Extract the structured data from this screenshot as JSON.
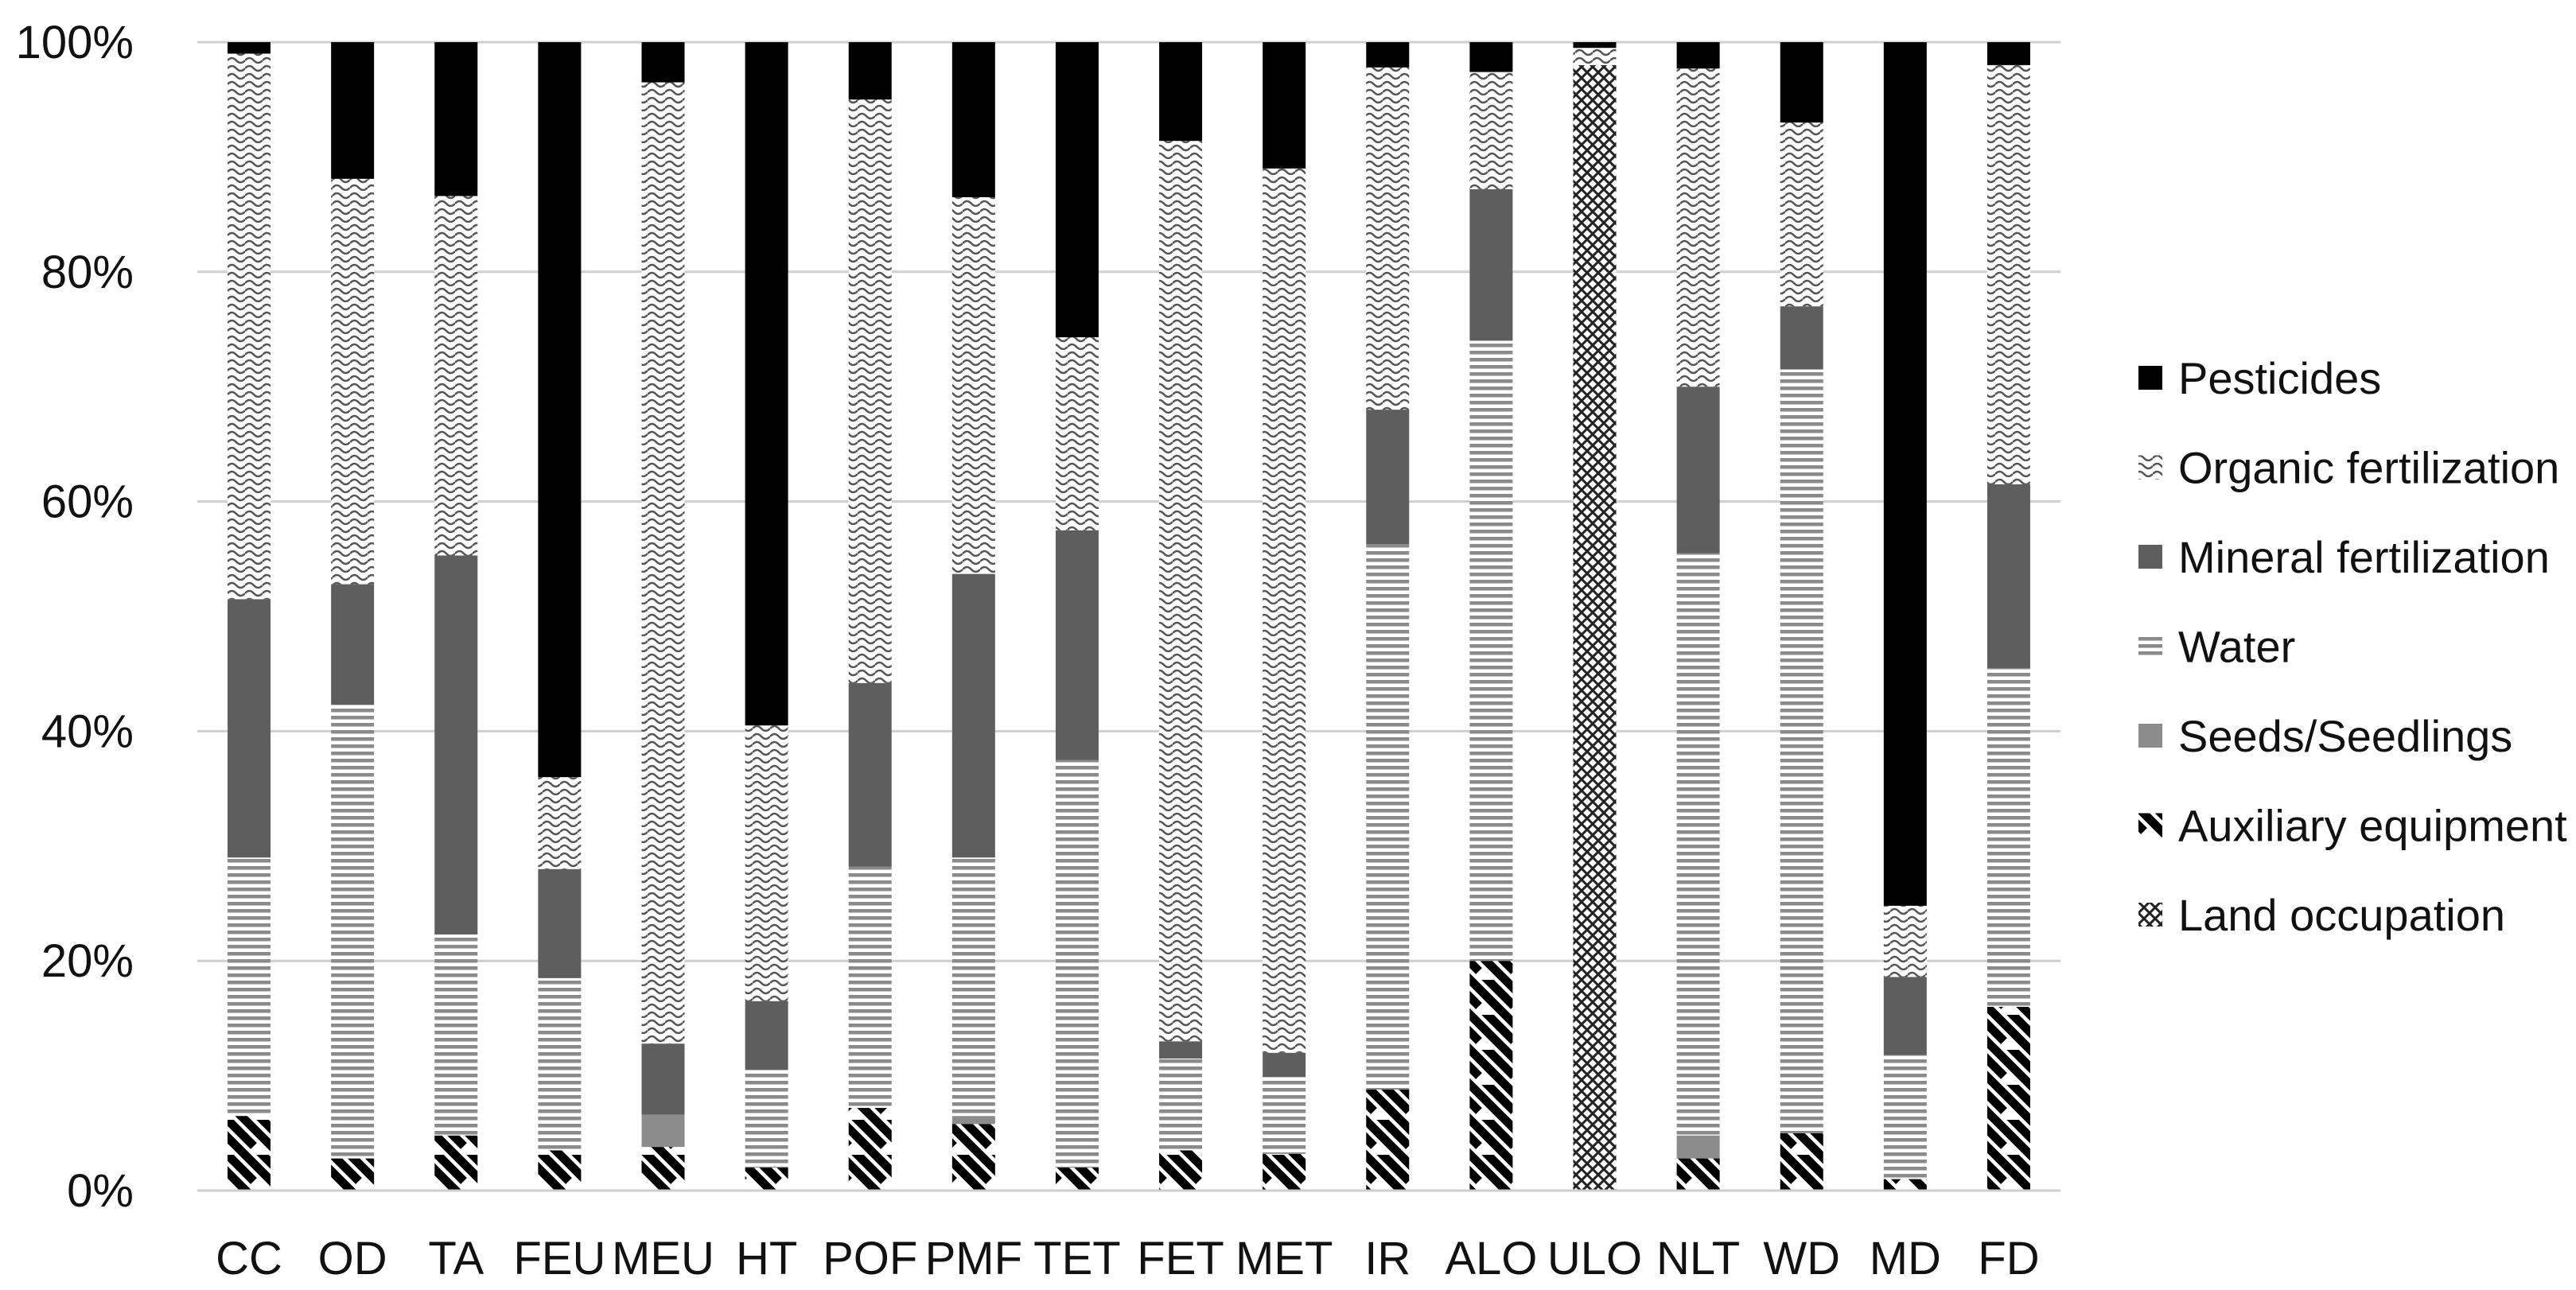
{
  "chart_data": {
    "type": "bar",
    "stacked": true,
    "title": "",
    "xlabel": "",
    "ylabel": "",
    "ylim": [
      0,
      100
    ],
    "yticks": [
      "0%",
      "20%",
      "40%",
      "60%",
      "80%",
      "100%"
    ],
    "grid": "horizontal",
    "legend_position": "right",
    "categories": [
      "CC",
      "OD",
      "TA",
      "FEU",
      "MEU",
      "HT",
      "POF",
      "PMF",
      "TET",
      "FET",
      "MET",
      "IR",
      "ALO",
      "ULO",
      "NLT",
      "WD",
      "MD",
      "FD"
    ],
    "series": [
      {
        "name": "Land occupation",
        "pattern": "crosshatch",
        "values": [
          0,
          0,
          0,
          0,
          0,
          0,
          0,
          0,
          0,
          0,
          0,
          0,
          0,
          98,
          0,
          0,
          0,
          0
        ]
      },
      {
        "name": "Auxiliary equipment",
        "pattern": "diagonal",
        "values": [
          6.5,
          2.8,
          4.8,
          3.5,
          3.8,
          2.0,
          7.2,
          5.8,
          2.0,
          3.5,
          3.2,
          8.8,
          20.0,
          0,
          2.8,
          5.0,
          1.0,
          16.0
        ]
      },
      {
        "name": "Seeds/Seedlings",
        "pattern": "solid-gray",
        "values": [
          0,
          0,
          0,
          0,
          2.8,
          0,
          0,
          0.7,
          0,
          0,
          0,
          0,
          0,
          0,
          2.0,
          0,
          0,
          0
        ]
      },
      {
        "name": "Water",
        "pattern": "horizontal",
        "values": [
          22.5,
          39.5,
          17.5,
          15.0,
          0,
          8.5,
          21.0,
          22.5,
          35.5,
          8.0,
          6.7,
          47.5,
          54.0,
          0,
          50.7,
          66.5,
          10.8,
          29.5
        ]
      },
      {
        "name": "Mineral fertilization",
        "pattern": "solid-dark",
        "values": [
          22.5,
          10.5,
          33.0,
          9.5,
          6.2,
          6.0,
          16.0,
          24.7,
          20.0,
          1.5,
          2.1,
          11.7,
          13.2,
          0,
          14.5,
          5.5,
          6.8,
          16.0
        ]
      },
      {
        "name": "Organic fertilization",
        "pattern": "wave",
        "values": [
          47.5,
          35.3,
          31.3,
          8.0,
          83.7,
          24.0,
          50.8,
          32.8,
          16.8,
          78.4,
          77.0,
          29.8,
          10.2,
          1.5,
          27.7,
          16.0,
          6.2,
          36.5
        ]
      },
      {
        "name": "Pesticides",
        "pattern": "black",
        "values": [
          1.0,
          11.9,
          13.4,
          64.0,
          3.5,
          59.5,
          5.0,
          13.5,
          25.7,
          8.6,
          11.0,
          2.2,
          2.6,
          0.5,
          2.3,
          7.0,
          75.2,
          2.0
        ]
      }
    ],
    "legend_order": [
      "Pesticides",
      "Organic fertilization",
      "Mineral fertilization",
      "Water",
      "Seeds/Seedlings",
      "Auxiliary equipment",
      "Land occupation"
    ]
  }
}
